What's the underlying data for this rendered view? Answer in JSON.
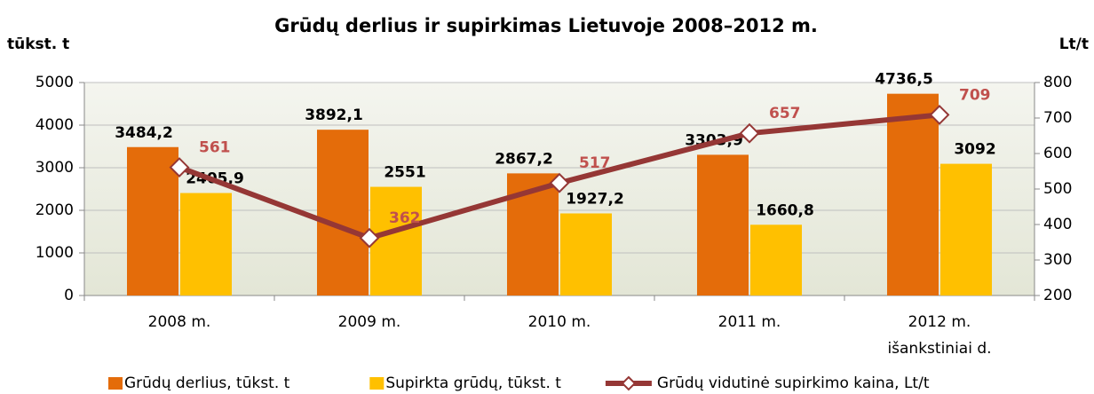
{
  "chart_data": {
    "type": "bar-line",
    "title": "Grūdų derlius ir supirkimas Lietuvoje 2008–2012 m.",
    "y_label": "tūkst. t",
    "y2_label": "Lt/t",
    "categories": [
      [
        "2008 m."
      ],
      [
        "2009 m."
      ],
      [
        "2010 m."
      ],
      [
        "2011 m."
      ],
      [
        "2012 m.",
        "išankstiniai d."
      ]
    ],
    "series": [
      {
        "name": "Grūdų derlius, tūkst. t",
        "type": "bar",
        "color": "#e46c0a",
        "values": [
          3484.2,
          3892.1,
          2867.2,
          3303.9,
          4736.5
        ],
        "value_labels": [
          "3484,2",
          "3892,1",
          "2867,2",
          "3303,9",
          "4736,5"
        ]
      },
      {
        "name": "Supirkta grūdų, tūkst. t",
        "type": "bar",
        "color": "#ffc000",
        "values": [
          2405.9,
          2551,
          1927.2,
          1660.8,
          3092
        ],
        "value_labels": [
          "2405,9",
          "2551",
          "1927,2",
          "1660,8",
          "3092"
        ]
      },
      {
        "name": "Grūdų vidutinė supirkimo kaina, Lt/t",
        "type": "line",
        "axis": "y2",
        "color": "#953735",
        "label_color": "#c0504d",
        "values": [
          561,
          362,
          517,
          657,
          709
        ]
      }
    ],
    "ylim": [
      0,
      5000
    ],
    "yticks": [
      0,
      1000,
      2000,
      3000,
      4000,
      5000
    ],
    "y2lim": [
      200,
      800
    ],
    "y2ticks": [
      200,
      300,
      400,
      500,
      600,
      700,
      800
    ],
    "grid": true,
    "legend": "bottom"
  }
}
